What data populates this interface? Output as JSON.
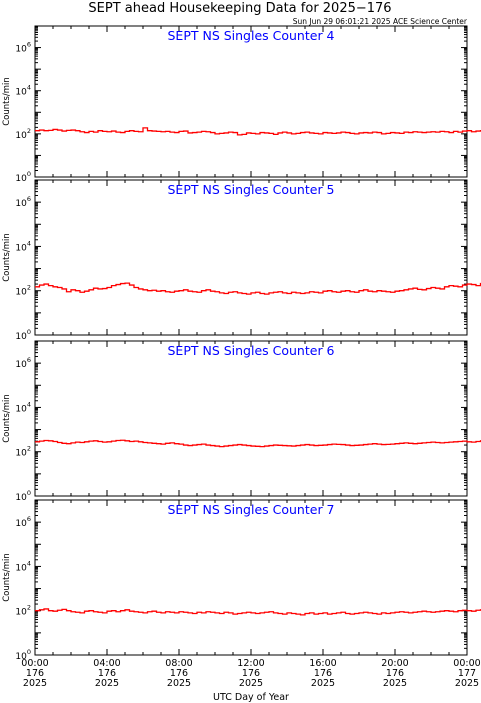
{
  "figure": {
    "title": "SEPT ahead Housekeeping Data for 2025−176",
    "timestamp": "Sun Jun 29 06:01:21 2025 ACE Science Center",
    "xlabel": "UTC Day of Year",
    "series_color": "#ff0000",
    "panel_title_color": "#0000ff"
  },
  "chart_data": [
    {
      "type": "line",
      "title": "SEPT NS Singles Counter 4",
      "ylabel": "Counts/min",
      "yscale": "log",
      "ylim": [
        1,
        10000000
      ],
      "yticks": [
        {
          "base": "10",
          "exp": "0"
        },
        {
          "base": "10",
          "exp": "2"
        },
        {
          "base": "10",
          "exp": "4"
        },
        {
          "base": "10",
          "exp": "6"
        }
      ],
      "xlim": [
        0,
        24
      ],
      "x_unit": "hours UTC",
      "step_hours": 0.25,
      "values": [
        140,
        150,
        140,
        145,
        160,
        150,
        135,
        145,
        150,
        140,
        125,
        115,
        130,
        120,
        140,
        130,
        125,
        135,
        120,
        115,
        130,
        140,
        130,
        125,
        190,
        140,
        135,
        130,
        125,
        130,
        120,
        115,
        130,
        135,
        110,
        115,
        120,
        130,
        125,
        115,
        100,
        105,
        110,
        120,
        115,
        90,
        95,
        110,
        105,
        100,
        115,
        110,
        105,
        95,
        110,
        120,
        110,
        100,
        105,
        115,
        120,
        110,
        105,
        100,
        115,
        110,
        105,
        110,
        120,
        115,
        105,
        100,
        110,
        115,
        110,
        120,
        115,
        100,
        105,
        115,
        110,
        105,
        120,
        115,
        125,
        120,
        115,
        120,
        125,
        120,
        130,
        125,
        115,
        130,
        120,
        135,
        140,
        125,
        135,
        140,
        130,
        120,
        135,
        140,
        130,
        135,
        145,
        150,
        140,
        130,
        145,
        140,
        150,
        145,
        140,
        155,
        160,
        150,
        145,
        190
      ]
    },
    {
      "type": "line",
      "title": "SEPT NS Singles Counter 5",
      "ylabel": "Counts/min",
      "yscale": "log",
      "ylim": [
        1,
        10000000
      ],
      "yticks": [
        {
          "base": "10",
          "exp": "0"
        },
        {
          "base": "10",
          "exp": "2"
        },
        {
          "base": "10",
          "exp": "4"
        },
        {
          "base": "10",
          "exp": "6"
        }
      ],
      "xlim": [
        0,
        24
      ],
      "x_unit": "hours UTC",
      "step_hours": 0.25,
      "values": [
        150,
        180,
        200,
        170,
        150,
        140,
        120,
        90,
        110,
        100,
        85,
        95,
        110,
        130,
        120,
        125,
        140,
        170,
        190,
        210,
        220,
        180,
        140,
        120,
        110,
        100,
        105,
        95,
        100,
        90,
        85,
        95,
        100,
        110,
        95,
        90,
        85,
        100,
        110,
        95,
        90,
        80,
        75,
        85,
        90,
        80,
        75,
        70,
        80,
        85,
        75,
        70,
        80,
        85,
        90,
        80,
        75,
        85,
        80,
        75,
        80,
        90,
        85,
        80,
        95,
        100,
        90,
        85,
        95,
        100,
        90,
        85,
        100,
        110,
        95,
        90,
        100,
        95,
        90,
        85,
        95,
        100,
        110,
        120,
        130,
        115,
        110,
        125,
        140,
        130,
        120,
        150,
        170,
        160,
        150,
        180,
        200,
        190,
        170,
        210,
        240,
        260,
        300,
        280,
        420,
        380,
        250,
        200,
        350,
        300,
        250,
        280,
        300,
        260,
        320,
        400,
        450,
        380,
        420,
        360
      ]
    },
    {
      "type": "line",
      "title": "SEPT NS Singles Counter 6",
      "ylabel": "Counts/min",
      "yscale": "log",
      "ylim": [
        1,
        10000000
      ],
      "yticks": [
        {
          "base": "10",
          "exp": "0"
        },
        {
          "base": "10",
          "exp": "2"
        },
        {
          "base": "10",
          "exp": "4"
        },
        {
          "base": "10",
          "exp": "6"
        }
      ],
      "xlim": [
        0,
        24
      ],
      "x_unit": "hours UTC",
      "step_hours": 0.25,
      "values": [
        280,
        300,
        320,
        310,
        290,
        260,
        240,
        230,
        250,
        270,
        260,
        280,
        300,
        310,
        290,
        270,
        280,
        300,
        320,
        330,
        310,
        290,
        300,
        280,
        260,
        250,
        240,
        230,
        220,
        240,
        250,
        230,
        220,
        200,
        190,
        200,
        210,
        220,
        200,
        190,
        180,
        170,
        180,
        190,
        200,
        210,
        200,
        190,
        180,
        175,
        170,
        180,
        190,
        200,
        195,
        190,
        185,
        180,
        190,
        200,
        210,
        200,
        190,
        195,
        200,
        210,
        220,
        215,
        210,
        200,
        190,
        195,
        200,
        210,
        220,
        230,
        220,
        210,
        215,
        220,
        230,
        240,
        250,
        240,
        230,
        240,
        250,
        260,
        270,
        260,
        250,
        260,
        270,
        280,
        290,
        300,
        280,
        270,
        290,
        310,
        380,
        320,
        300,
        310,
        320,
        330,
        340,
        360,
        350,
        340,
        360,
        380,
        400,
        390,
        380,
        400,
        420,
        410,
        430,
        450
      ]
    },
    {
      "type": "line",
      "title": "SEPT NS Singles Counter 7",
      "ylabel": "Counts/min",
      "yscale": "log",
      "ylim": [
        1,
        10000000
      ],
      "yticks": [
        {
          "base": "10",
          "exp": "0"
        },
        {
          "base": "10",
          "exp": "2"
        },
        {
          "base": "10",
          "exp": "4"
        },
        {
          "base": "10",
          "exp": "6"
        }
      ],
      "xlim": [
        0,
        24
      ],
      "x_unit": "hours UTC",
      "step_hours": 0.25,
      "values": [
        100,
        110,
        120,
        100,
        95,
        105,
        115,
        100,
        90,
        85,
        80,
        95,
        100,
        90,
        85,
        80,
        95,
        100,
        90,
        100,
        110,
        95,
        90,
        85,
        80,
        90,
        95,
        85,
        80,
        90,
        85,
        80,
        90,
        85,
        80,
        75,
        85,
        80,
        90,
        85,
        80,
        75,
        85,
        80,
        70,
        75,
        80,
        85,
        80,
        75,
        80,
        85,
        90,
        80,
        75,
        70,
        80,
        75,
        70,
        65,
        75,
        80,
        70,
        75,
        80,
        70,
        75,
        80,
        85,
        75,
        70,
        75,
        80,
        85,
        80,
        75,
        70,
        80,
        75,
        80,
        85,
        90,
        85,
        80,
        85,
        90,
        95,
        90,
        85,
        90,
        95,
        100,
        95,
        90,
        100,
        105,
        100,
        95,
        105,
        110,
        100,
        105,
        110,
        115,
        110,
        120,
        115,
        110,
        125,
        130,
        140,
        130,
        150,
        160,
        150,
        170,
        180,
        160,
        175,
        300
      ]
    }
  ],
  "xaxis": {
    "ticks": [
      {
        "hour": 0,
        "time": "00:00",
        "day": "176",
        "year": "2025"
      },
      {
        "hour": 4,
        "time": "04:00",
        "day": "176",
        "year": "2025"
      },
      {
        "hour": 8,
        "time": "08:00",
        "day": "176",
        "year": "2025"
      },
      {
        "hour": 12,
        "time": "12:00",
        "day": "176",
        "year": "2025"
      },
      {
        "hour": 16,
        "time": "16:00",
        "day": "176",
        "year": "2025"
      },
      {
        "hour": 20,
        "time": "20:00",
        "day": "176",
        "year": "2025"
      },
      {
        "hour": 24,
        "time": "00:00",
        "day": "177",
        "year": "2025"
      }
    ]
  }
}
